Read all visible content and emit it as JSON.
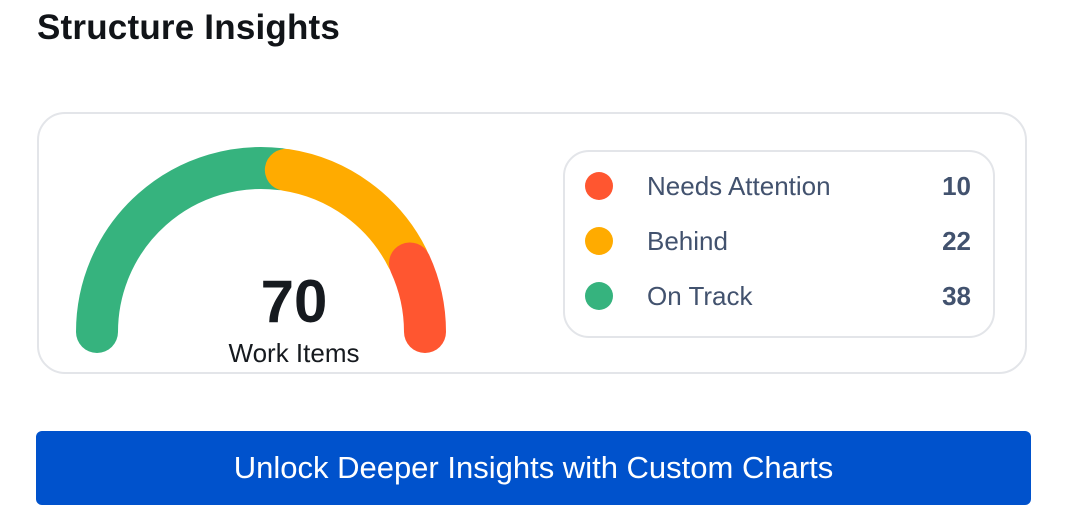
{
  "header": {
    "title": "Structure Insights"
  },
  "gauge": {
    "total": "70",
    "label": "Work Items",
    "segments": [
      {
        "name": "On Track",
        "value": 38,
        "color": "#36b37e"
      },
      {
        "name": "Behind",
        "value": 22,
        "color": "#ffab00"
      },
      {
        "name": "Needs Attention",
        "value": 10,
        "color": "#ff5630"
      }
    ]
  },
  "legend": {
    "items": [
      {
        "label": "Needs Attention",
        "count": "10",
        "color": "#ff5630"
      },
      {
        "label": "Behind",
        "count": "22",
        "color": "#ffab00"
      },
      {
        "label": "On Track",
        "count": "38",
        "color": "#36b37e"
      }
    ]
  },
  "cta": {
    "label": "Unlock Deeper Insights with Custom Charts",
    "color": "#0052cc"
  }
}
